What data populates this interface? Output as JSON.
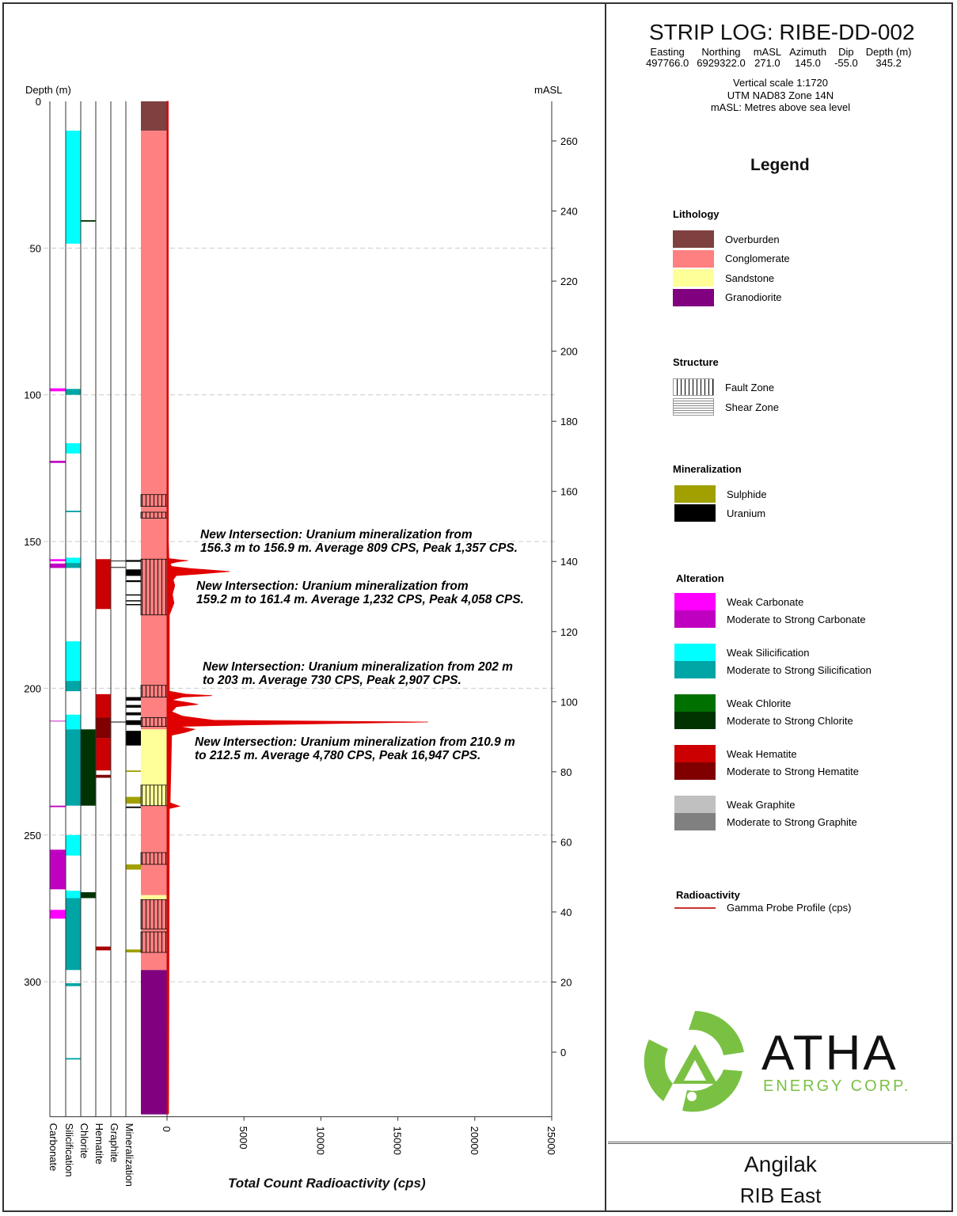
{
  "header": {
    "title": "STRIP LOG: RIBE-DD-002",
    "fields": [
      {
        "label": "Easting",
        "value": "497766.0"
      },
      {
        "label": "Northing",
        "value": "6929322.0"
      },
      {
        "label": "mASL",
        "value": "271.0"
      },
      {
        "label": "Azimuth",
        "value": "145.0"
      },
      {
        "label": "Dip",
        "value": "-55.0"
      },
      {
        "label": "Depth (m)",
        "value": "345.2"
      }
    ],
    "notes": [
      "Vertical scale 1:1720",
      "UTM NAD83 Zone 14N",
      "mASL: Metres above sea level"
    ]
  },
  "legend": {
    "title": "Legend",
    "sections": [
      {
        "name": "Lithology",
        "items": [
          {
            "label": "Overburden",
            "color": "#7f4040"
          },
          {
            "label": "Conglomerate",
            "color": "#ff8080"
          },
          {
            "label": "Sandstone",
            "color": "#ffff99"
          },
          {
            "label": "Granodiorite",
            "color": "#800080"
          }
        ]
      },
      {
        "name": "Structure",
        "items": [
          {
            "label": "Fault Zone",
            "pattern": "vertical-hatch"
          },
          {
            "label": "Shear Zone",
            "pattern": "dashed-hatch"
          }
        ]
      },
      {
        "name": "Mineralization",
        "items": [
          {
            "label": "Sulphide",
            "color": "#a0a000"
          },
          {
            "label": "Uranium",
            "color": "#000000"
          }
        ]
      },
      {
        "name": "Alteration",
        "items": [
          {
            "label": "Weak Carbonate",
            "color": "#ff00ff"
          },
          {
            "label": "Moderate to Strong Carbonate",
            "color": "#c000c0"
          },
          {
            "label": "Weak Silicification",
            "color": "#00ffff"
          },
          {
            "label": "Moderate to Strong Silicification",
            "color": "#00a5a5"
          },
          {
            "label": "Weak Chlorite",
            "color": "#007000"
          },
          {
            "label": "Moderate to Strong Chlorite",
            "color": "#003300"
          },
          {
            "label": "Weak Hematite",
            "color": "#cc0000"
          },
          {
            "label": "Moderate to Strong Hematite",
            "color": "#800000"
          },
          {
            "label": "Weak Graphite",
            "color": "#c0c0c0"
          },
          {
            "label": "Moderate to Strong Graphite",
            "color": "#808080"
          }
        ]
      },
      {
        "name": "Radioactivity",
        "items": [
          {
            "label": "Gamma Probe Profile (cps)",
            "color": "#cc3333"
          }
        ]
      }
    ]
  },
  "logo": {
    "name": "ATHA",
    "sub": "ENERGY CORP.",
    "green": "#7ac143"
  },
  "footer": {
    "project": "Angilak",
    "area": "RIB East"
  },
  "log": {
    "depth_label": "Depth (m)",
    "masl_label": "mASL",
    "xlabel": "Total Count Radioactivity (cps)",
    "depth_ticks": [
      0,
      50,
      100,
      150,
      200,
      250,
      300
    ],
    "masl_ticks": [
      260,
      240,
      220,
      200,
      180,
      160,
      140,
      120,
      100,
      80,
      60,
      40,
      20,
      0
    ],
    "cps_ticks": [
      0,
      5000,
      10000,
      15000,
      20000,
      25000
    ],
    "column_labels": [
      "Carbonate",
      "Silicification",
      "Chlorite",
      "Hematite",
      "Graphite",
      "Mineralization"
    ],
    "lithology": [
      [
        0,
        10,
        "#7f4040"
      ],
      [
        10,
        214,
        "#ff8080"
      ],
      [
        214,
        240,
        "#ffff99"
      ],
      [
        240,
        270.5,
        "#ff8080"
      ],
      [
        270.5,
        272,
        "#ffff99"
      ],
      [
        272,
        296,
        "#ff8080"
      ],
      [
        296,
        345.2,
        "#800080"
      ]
    ],
    "faults": [
      [
        134,
        138
      ],
      [
        140,
        142
      ],
      [
        156,
        175
      ],
      [
        199,
        203
      ],
      [
        210,
        213
      ],
      [
        233,
        240
      ],
      [
        256,
        260
      ],
      [
        272,
        282
      ],
      [
        283,
        290
      ]
    ],
    "carbonate": [
      [
        97.8,
        98.8,
        "#ff00ff"
      ],
      [
        122.5,
        123.2,
        "#c000c0"
      ],
      [
        156,
        156.7,
        "#ff00ff"
      ],
      [
        157.5,
        159,
        "#c000c0"
      ],
      [
        210.9,
        211.4,
        "#e080e0"
      ],
      [
        240,
        240.5,
        "#c000c0"
      ],
      [
        255,
        268.5,
        "#c000c0"
      ],
      [
        275.5,
        278.5,
        "#ff00ff"
      ]
    ],
    "silicification": [
      [
        10,
        48.5,
        "#00ffff"
      ],
      [
        98,
        100,
        "#00a5a5"
      ],
      [
        116.5,
        120,
        "#00ffff"
      ],
      [
        139.5,
        140,
        "#00a5a5"
      ],
      [
        155.5,
        157.3,
        "#00ffff"
      ],
      [
        157.3,
        159,
        "#00a5a5"
      ],
      [
        184,
        197.5,
        "#00ffff"
      ],
      [
        197.5,
        201,
        "#00a5a5"
      ],
      [
        209,
        214,
        "#00ffff"
      ],
      [
        214,
        240,
        "#00a5a5"
      ],
      [
        250,
        257,
        "#00ffff"
      ],
      [
        269,
        271.5,
        "#00ffff"
      ],
      [
        271.5,
        296,
        "#00a5a5"
      ],
      [
        300.5,
        301.5,
        "#00a5a5"
      ],
      [
        326,
        326.5,
        "#00a5a5"
      ]
    ],
    "chlorite": [
      [
        40.5,
        41,
        "#003300"
      ],
      [
        214,
        240,
        "#003300"
      ],
      [
        269.5,
        271.5,
        "#003300"
      ]
    ],
    "hematite": [
      [
        156,
        173,
        "#cc0000"
      ],
      [
        202,
        210,
        "#cc0000"
      ],
      [
        210,
        217,
        "#800000"
      ],
      [
        217,
        228,
        "#cc0000"
      ],
      [
        229.5,
        230.5,
        "#800000"
      ],
      [
        288,
        289.3,
        "#aa0000"
      ]
    ],
    "graphite": [
      [
        156.4,
        156.8,
        "#555555"
      ],
      [
        158.6,
        159,
        "#555555"
      ],
      [
        211.3,
        211.7,
        "#555555"
      ]
    ],
    "mineralization": [
      [
        156.3,
        156.9,
        "#000000"
      ],
      [
        159.5,
        161.7,
        "#000000"
      ],
      [
        163.2,
        163.8,
        "#000000"
      ],
      [
        168,
        168.4,
        "#000000"
      ],
      [
        170,
        170.4,
        "#000000"
      ],
      [
        171.3,
        171.7,
        "#000000"
      ],
      [
        203,
        204.2,
        "#000000"
      ],
      [
        205.7,
        206.6,
        "#000000"
      ],
      [
        208.2,
        209.2,
        "#000000"
      ],
      [
        210.9,
        212.5,
        "#000000"
      ],
      [
        214.5,
        219.5,
        "#000000"
      ],
      [
        228,
        228.5,
        "#a0a000"
      ],
      [
        237,
        239.3,
        "#a0a000"
      ],
      [
        240.3,
        240.8,
        "#000000"
      ],
      [
        260,
        261.8,
        "#a0a000"
      ],
      [
        289,
        290,
        "#a0a000"
      ]
    ],
    "gamma": [
      [
        0,
        80
      ],
      [
        150,
        90
      ],
      [
        155.8,
        120
      ],
      [
        156.3,
        900
      ],
      [
        156.5,
        1357
      ],
      [
        156.9,
        700
      ],
      [
        157.5,
        200
      ],
      [
        158.5,
        300
      ],
      [
        159.2,
        1500
      ],
      [
        160.2,
        4058
      ],
      [
        161,
        2200
      ],
      [
        161.6,
        600
      ],
      [
        163,
        400
      ],
      [
        165,
        500
      ],
      [
        168,
        350
      ],
      [
        171,
        450
      ],
      [
        173,
        300
      ],
      [
        175,
        150
      ],
      [
        201,
        150
      ],
      [
        202,
        1200
      ],
      [
        202.5,
        2907
      ],
      [
        203,
        1000
      ],
      [
        204,
        300
      ],
      [
        205,
        1500
      ],
      [
        205.5,
        2000
      ],
      [
        206.3,
        600
      ],
      [
        208,
        300
      ],
      [
        209.5,
        1000
      ],
      [
        210.9,
        3000
      ],
      [
        211.5,
        16947
      ],
      [
        212.5,
        5000
      ],
      [
        213,
        800
      ],
      [
        214,
        1800
      ],
      [
        215,
        1200
      ],
      [
        216,
        300
      ],
      [
        239,
        200
      ],
      [
        240.2,
        800
      ],
      [
        241,
        150
      ],
      [
        345,
        100
      ]
    ],
    "annotations": [
      {
        "text1": "New Intersection: Uranium mineralization from",
        "text2": "156.3 m to 156.9 m. Average 809 CPS, Peak 1,357 CPS."
      },
      {
        "text1": "New Intersection: Uranium mineralization from",
        "text2": "159.2 m to 161.4 m. Average 1,232 CPS, Peak 4,058 CPS."
      },
      {
        "text1": "New Intersection: Uranium mineralization from 202 m",
        "text2": "to 203 m. Average 730 CPS, Peak 2,907 CPS."
      },
      {
        "text1": "New Intersection: Uranium mineralization from 210.9 m",
        "text2": "to 212.5 m. Average 4,780 CPS, Peak 16,947 CPS."
      }
    ]
  }
}
